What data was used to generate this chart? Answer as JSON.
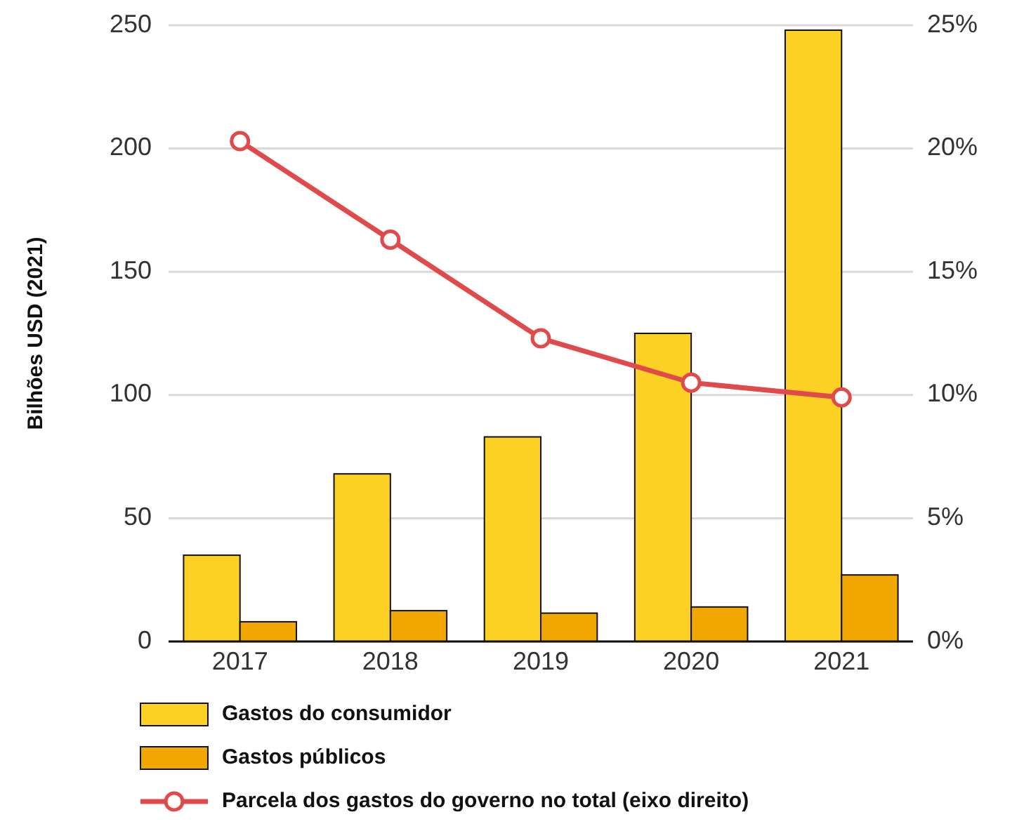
{
  "chart_data": {
    "type": "bar",
    "ylabel": "Bilhões USD (2021)",
    "categories": [
      "2017",
      "2018",
      "2019",
      "2020",
      "2021"
    ],
    "series": [
      {
        "name": "Gastos do consumidor",
        "color": "#fcd123",
        "values": [
          35,
          68,
          83,
          125,
          248
        ]
      },
      {
        "name": "Gastos públicos",
        "color": "#f0a800",
        "values": [
          8,
          12.5,
          11.5,
          14,
          27
        ]
      },
      {
        "name": "Parcela dos gastos do governo no total (eixo direito)",
        "type": "line",
        "axis": "y2",
        "color": "#e04a4a",
        "marker": "circle",
        "values": [
          20.3,
          16.3,
          12.3,
          10.5,
          9.9
        ]
      }
    ],
    "ylim": [
      0,
      250
    ],
    "yticks": [
      0,
      50,
      100,
      150,
      200,
      250
    ],
    "y2lim": [
      0,
      25
    ],
    "y2ticks": [
      {
        "value": 0,
        "label": "0%"
      },
      {
        "value": 5,
        "label": "5%"
      },
      {
        "value": 10,
        "label": "10%"
      },
      {
        "value": 15,
        "label": "15%"
      },
      {
        "value": 20,
        "label": "20%"
      },
      {
        "value": 25,
        "label": "25%"
      }
    ],
    "grid": "y",
    "legend": "bottom"
  }
}
